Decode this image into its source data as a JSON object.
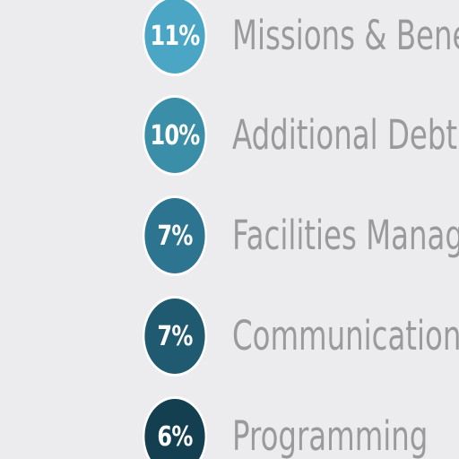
{
  "chart_data": {
    "type": "table",
    "items": [
      {
        "value": "11%",
        "label": "Missions & Benevolence",
        "color": "#4aa6c4"
      },
      {
        "value": "10%",
        "label": "Additional Debt Reduction",
        "color": "#3a8ea8"
      },
      {
        "value": "7%",
        "label": "Facilities Management",
        "color": "#2d7490"
      },
      {
        "value": "7%",
        "label": "Communications",
        "color": "#1f5a70"
      },
      {
        "value": "6%",
        "label": "Programming",
        "color": "#133f50"
      }
    ]
  }
}
